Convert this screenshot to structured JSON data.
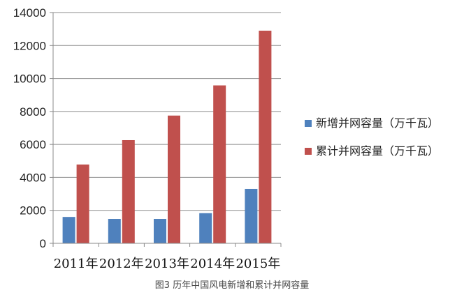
{
  "chart_data": {
    "type": "bar",
    "categories": [
      "2011年",
      "2012年",
      "2013年",
      "2014年",
      "2015年"
    ],
    "series": [
      {
        "name": "新增并网容量（万千瓦）",
        "color": "#4f81bd",
        "values": [
          1600,
          1480,
          1480,
          1830,
          3300
        ]
      },
      {
        "name": "累计并网容量（万千瓦）",
        "color": "#c0504d",
        "values": [
          4780,
          6260,
          7750,
          9580,
          12900
        ]
      }
    ],
    "yticks": [
      "0",
      "2000",
      "4000",
      "6000",
      "8000",
      "10000",
      "12000",
      "14000"
    ],
    "ylim": [
      0,
      14000
    ],
    "grid": true,
    "legend": "right",
    "title": "",
    "xlabel": "",
    "ylabel": ""
  },
  "caption": "图3 历年中国风电新增和累计并网容量"
}
